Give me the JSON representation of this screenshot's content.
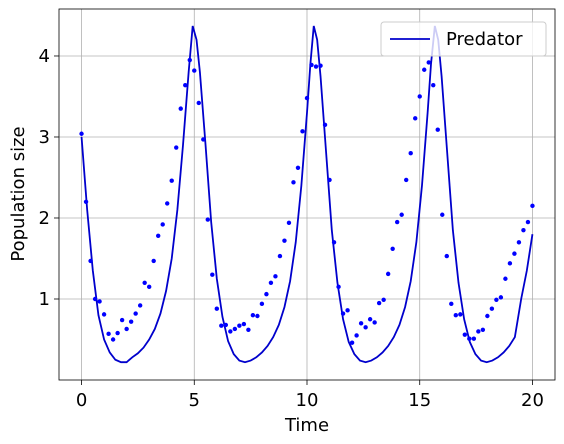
{
  "chart_data": {
    "type": "line",
    "xlabel": "Time",
    "ylabel": "Population size",
    "xlim": [
      -1,
      21
    ],
    "ylim": [
      0,
      4.58
    ],
    "xticks": [
      0,
      5,
      10,
      15,
      20
    ],
    "yticks": [
      1,
      2,
      3,
      4
    ],
    "grid": true,
    "legend": "upper right",
    "series": [
      {
        "name": "Predator",
        "type": "line",
        "color": "#0000cc",
        "x": [
          0,
          0.25,
          0.5,
          0.75,
          1,
          1.25,
          1.5,
          1.75,
          2,
          2.25,
          2.5,
          2.75,
          3,
          3.25,
          3.5,
          3.75,
          4,
          4.25,
          4.5,
          4.75,
          4.93,
          5.1,
          5.25,
          5.5,
          5.75,
          6,
          6.25,
          6.5,
          6.75,
          7,
          7.25,
          7.5,
          7.75,
          8,
          8.25,
          8.5,
          8.75,
          9,
          9.25,
          9.5,
          9.75,
          10,
          10.15,
          10.3,
          10.45,
          10.6,
          10.85,
          11.1,
          11.35,
          11.6,
          11.85,
          12.1,
          12.35,
          12.6,
          12.85,
          13.1,
          13.35,
          13.6,
          13.85,
          14.1,
          14.35,
          14.6,
          14.85,
          15.1,
          15.35,
          15.5,
          15.67,
          15.82,
          15.97,
          16.22,
          16.47,
          16.72,
          16.97,
          17.22,
          17.47,
          17.72,
          17.97,
          18.22,
          18.47,
          18.72,
          18.97,
          19.22,
          19.5,
          19.75,
          20
        ],
        "values": [
          3.0,
          2.1,
          1.35,
          0.8,
          0.5,
          0.34,
          0.25,
          0.22,
          0.22,
          0.28,
          0.33,
          0.4,
          0.5,
          0.63,
          0.82,
          1.1,
          1.5,
          2.1,
          2.9,
          3.8,
          4.37,
          4.2,
          3.8,
          2.9,
          1.95,
          1.25,
          0.78,
          0.48,
          0.32,
          0.24,
          0.22,
          0.24,
          0.28,
          0.34,
          0.42,
          0.53,
          0.68,
          0.9,
          1.22,
          1.7,
          2.4,
          3.3,
          3.9,
          4.37,
          4.2,
          3.75,
          2.8,
          1.85,
          1.2,
          0.75,
          0.47,
          0.32,
          0.24,
          0.22,
          0.24,
          0.28,
          0.34,
          0.42,
          0.53,
          0.68,
          0.9,
          1.22,
          1.7,
          2.4,
          3.3,
          3.9,
          4.37,
          4.2,
          3.75,
          2.8,
          1.85,
          1.2,
          0.75,
          0.47,
          0.32,
          0.24,
          0.22,
          0.24,
          0.28,
          0.34,
          0.42,
          0.53,
          1.0,
          1.35,
          1.8
        ]
      },
      {
        "type": "scatter",
        "color": "#0000ff",
        "x": [
          0,
          0.2,
          0.4,
          0.6,
          0.8,
          1,
          1.2,
          1.4,
          1.6,
          1.8,
          2,
          2.2,
          2.4,
          2.6,
          2.8,
          3,
          3.2,
          3.4,
          3.6,
          3.8,
          4,
          4.2,
          4.4,
          4.6,
          4.8,
          5,
          5.2,
          5.4,
          5.6,
          5.8,
          6,
          6.2,
          6.4,
          6.6,
          6.8,
          7,
          7.2,
          7.4,
          7.6,
          7.8,
          8,
          8.2,
          8.4,
          8.6,
          8.8,
          9,
          9.2,
          9.4,
          9.6,
          9.8,
          10,
          10.2,
          10.4,
          10.6,
          10.8,
          11,
          11.2,
          11.4,
          11.6,
          11.8,
          12,
          12.2,
          12.4,
          12.6,
          12.8,
          13,
          13.2,
          13.4,
          13.6,
          13.8,
          14,
          14.2,
          14.4,
          14.6,
          14.8,
          15,
          15.2,
          15.4,
          15.6,
          15.8,
          16,
          16.2,
          16.4,
          16.6,
          16.8,
          17,
          17.2,
          17.4,
          17.6,
          17.8,
          18,
          18.2,
          18.4,
          18.6,
          18.8,
          19,
          19.2,
          19.4,
          19.6,
          19.8,
          20
        ],
        "values": [
          3.04,
          2.2,
          1.47,
          1.0,
          0.97,
          0.81,
          0.57,
          0.5,
          0.58,
          0.74,
          0.63,
          0.72,
          0.82,
          0.92,
          1.2,
          1.15,
          1.47,
          1.78,
          1.92,
          2.18,
          2.46,
          2.87,
          3.35,
          3.64,
          3.95,
          3.82,
          3.42,
          2.97,
          1.98,
          1.3,
          0.88,
          0.67,
          0.68,
          0.6,
          0.63,
          0.67,
          0.69,
          0.62,
          0.8,
          0.79,
          0.94,
          1.06,
          1.2,
          1.28,
          1.53,
          1.72,
          1.94,
          2.44,
          2.62,
          3.07,
          3.48,
          3.89,
          3.87,
          3.88,
          3.15,
          2.47,
          1.7,
          1.15,
          0.82,
          0.86,
          0.46,
          0.55,
          0.7,
          0.65,
          0.75,
          0.71,
          0.95,
          0.99,
          1.31,
          1.62,
          1.95,
          2.04,
          2.47,
          2.8,
          3.23,
          3.5,
          3.83,
          3.92,
          3.64,
          3.09,
          2.04,
          1.53,
          0.94,
          0.8,
          0.81,
          0.56,
          0.51,
          0.51,
          0.6,
          0.62,
          0.79,
          0.88,
          0.99,
          1.02,
          1.25,
          1.44,
          1.56,
          1.7,
          1.85,
          1.95,
          2.15
        ]
      }
    ]
  }
}
